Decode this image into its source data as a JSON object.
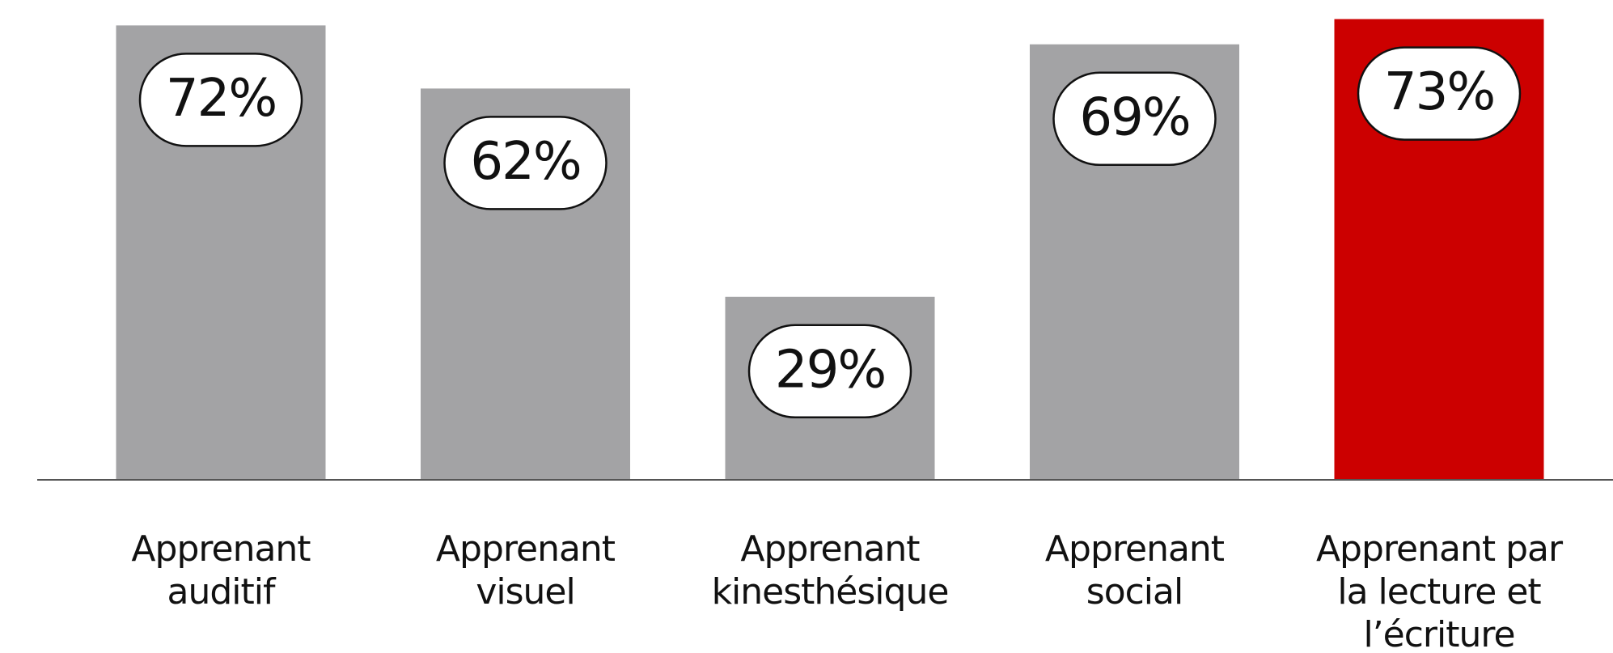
{
  "chart_data": {
    "type": "bar",
    "categories": [
      "Apprenant\nauditif",
      "Apprenant\nvisuel",
      "Apprenant\nkinesthésique",
      "Apprenant\nsocial",
      "Apprenant par\nla lecture et\nl’écriture"
    ],
    "values": [
      72,
      62,
      29,
      69,
      73
    ],
    "value_labels": [
      "72%",
      "62%",
      "29%",
      "69%",
      "73%"
    ],
    "colors": [
      "#a3a3a5",
      "#a3a3a5",
      "#a3a3a5",
      "#a3a3a5",
      "#cc0000"
    ],
    "ylim": [
      0,
      75
    ]
  }
}
